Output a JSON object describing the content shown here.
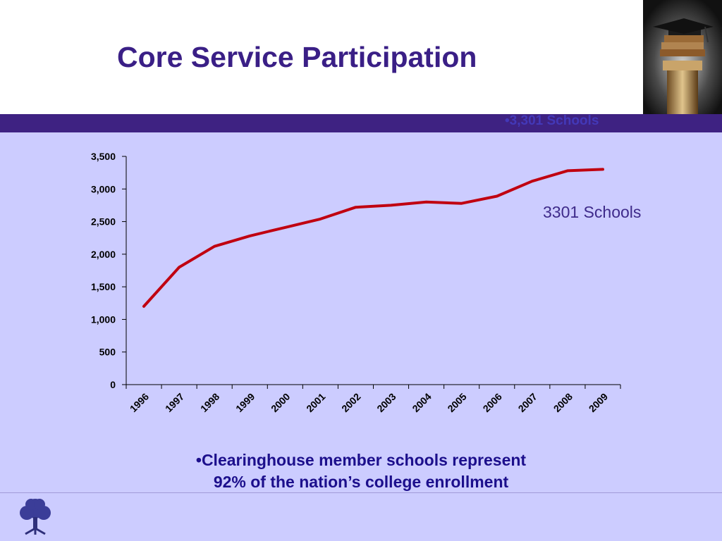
{
  "slide": {
    "title": "Core Service Participation",
    "band_text": "•3,301 Schools",
    "annotation": "3301 Schools",
    "bullet_line1": "•Clearinghouse member schools represent",
    "bullet_line2": "92% of the nation’s college enrollment"
  },
  "colors": {
    "background": "#ccccff",
    "title": "#3a1f86",
    "band": "#3e2282",
    "series_line": "#c00010",
    "bullet_text": "#1c0f8c"
  },
  "chart_data": {
    "type": "line",
    "title": "",
    "xlabel": "",
    "ylabel": "",
    "categories": [
      "1996",
      "1997",
      "1998",
      "1999",
      "2000",
      "2001",
      "2002",
      "2003",
      "2004",
      "2005",
      "2006",
      "2007",
      "2008",
      "2009"
    ],
    "series": [
      {
        "values": [
          1200,
          1800,
          2120,
          2280,
          2410,
          2540,
          2720,
          2750,
          2800,
          2780,
          2890,
          3120,
          3280,
          3301
        ]
      }
    ],
    "ylim": [
      0,
      3500
    ],
    "yticks": [
      0,
      500,
      1000,
      1500,
      2000,
      2500,
      3000,
      3500
    ],
    "ytick_labels": [
      "0",
      "500",
      "1,000",
      "1,500",
      "2,000",
      "2,500",
      "3,000",
      "3,500"
    ],
    "grid": false,
    "legend": "none"
  }
}
